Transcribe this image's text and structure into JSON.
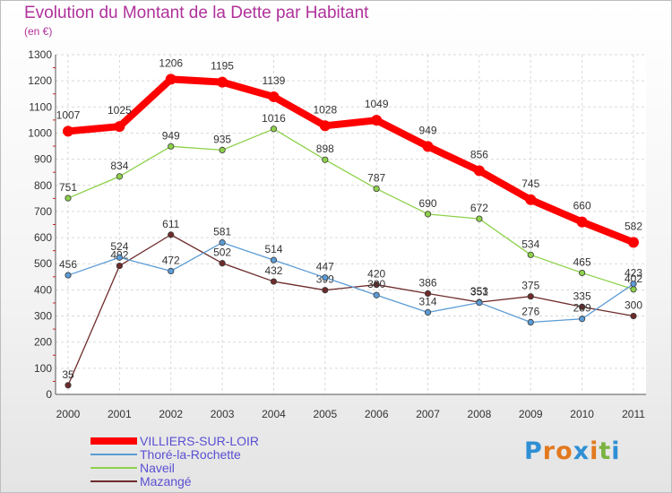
{
  "title": "Evolution du Montant de la Dette par Habitant",
  "subtitle": "(en €)",
  "logo": {
    "letters": [
      "P",
      "r",
      "o",
      "x",
      "i",
      "t",
      "i"
    ],
    "colors": [
      "#2f8fd4",
      "#e3791f",
      "#e3791f",
      "#2f8fd4",
      "#e3791f",
      "#7cb342",
      "#2f8fd4"
    ]
  },
  "chart_data": {
    "type": "line",
    "categories": [
      "2000",
      "2001",
      "2002",
      "2003",
      "2004",
      "2005",
      "2006",
      "2007",
      "2008",
      "2009",
      "2010",
      "2011"
    ],
    "ylim": [
      0,
      1300
    ],
    "yticks": [
      0,
      100,
      200,
      300,
      400,
      500,
      600,
      700,
      800,
      900,
      1000,
      1100,
      1200,
      1300
    ],
    "grid": true,
    "legend_position": "bottom-left",
    "series": [
      {
        "name": "VILLIERS-SUR-LOIR",
        "color": "#ff0000",
        "values": [
          1007,
          1025,
          1206,
          1195,
          1139,
          1028,
          1049,
          949,
          856,
          745,
          660,
          582
        ]
      },
      {
        "name": "Thoré-la-Rochette",
        "color": "#5b9bd5",
        "values": [
          456,
          524,
          472,
          581,
          514,
          447,
          380,
          314,
          351,
          276,
          289,
          423
        ]
      },
      {
        "name": "Naveil",
        "color": "#8dd14a",
        "values": [
          751,
          834,
          949,
          935,
          1016,
          898,
          787,
          690,
          672,
          534,
          465,
          402
        ]
      },
      {
        "name": "Mazangé",
        "color": "#6e2b2b",
        "values": [
          35,
          492,
          611,
          502,
          432,
          399,
          420,
          386,
          353,
          375,
          335,
          300
        ]
      }
    ]
  }
}
